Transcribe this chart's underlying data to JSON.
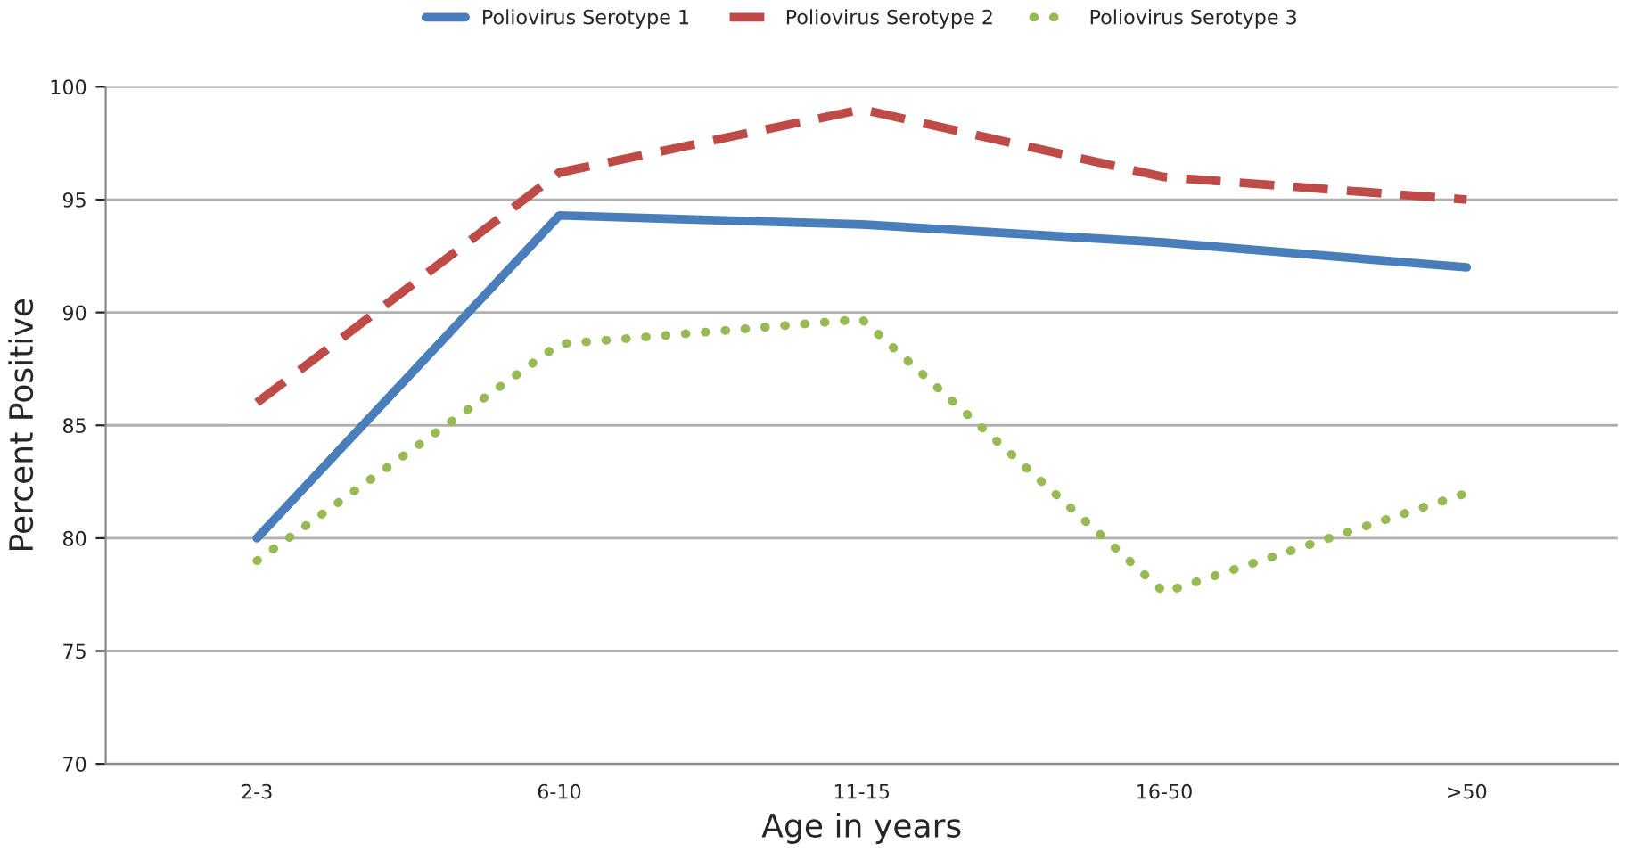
{
  "chart_data": {
    "type": "line",
    "xlabel": "Age in years",
    "ylabel": "Percent Positive",
    "categories": [
      "2-3",
      "6-10",
      "11-15",
      "16-50",
      ">50"
    ],
    "series": [
      {
        "name": "Poliovirus Serotype 1",
        "color": "#4a7ebb",
        "line_style": "solid",
        "values": [
          80.0,
          94.3,
          93.9,
          93.1,
          92.0
        ]
      },
      {
        "name": "Poliovirus Serotype 2",
        "color": "#be4b48",
        "line_style": "dashed",
        "values": [
          86.0,
          96.2,
          99.0,
          96.0,
          95.0
        ]
      },
      {
        "name": "Poliovirus Serotype 3",
        "color": "#98b954",
        "line_style": "dotted",
        "values": [
          79.0,
          88.6,
          89.7,
          77.6,
          82.0
        ]
      }
    ],
    "ylim": [
      70,
      100
    ],
    "yticks": [
      70,
      75,
      80,
      85,
      90,
      95,
      100
    ],
    "grid": "y",
    "legend": "top"
  }
}
